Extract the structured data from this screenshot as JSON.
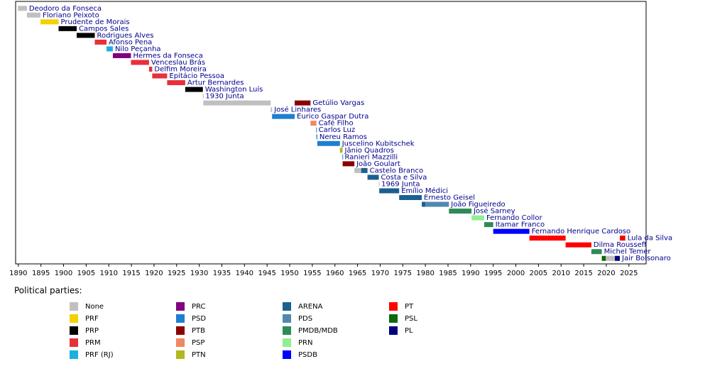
{
  "chart_data": {
    "type": "timeline",
    "legend_title": "Political parties:",
    "xlim": [
      1889.4,
      2028.8
    ],
    "xticks": [
      1890,
      1895,
      1900,
      1905,
      1910,
      1915,
      1920,
      1925,
      1930,
      1935,
      1940,
      1945,
      1950,
      1955,
      1960,
      1965,
      1970,
      1975,
      1980,
      1985,
      1990,
      1995,
      2000,
      2005,
      2010,
      2015,
      2020,
      2025
    ],
    "parties": [
      {
        "name": "None",
        "color": "#c0c0c0"
      },
      {
        "name": "PRF",
        "color": "#f2d200"
      },
      {
        "name": "PRP",
        "color": "#000000"
      },
      {
        "name": "PRM",
        "color": "#e8303a"
      },
      {
        "name": "PRF (RJ)",
        "color": "#1ab0e0"
      },
      {
        "name": "PRC",
        "color": "#800080"
      },
      {
        "name": "PSD",
        "color": "#1e7fd0"
      },
      {
        "name": "PTB",
        "color": "#8b0000"
      },
      {
        "name": "PSP",
        "color": "#f08860"
      },
      {
        "name": "PTN",
        "color": "#b0b820"
      },
      {
        "name": "ARENA",
        "color": "#1a6090"
      },
      {
        "name": "PDS",
        "color": "#5088b0"
      },
      {
        "name": "PMDB/MDB",
        "color": "#2e8b57"
      },
      {
        "name": "PRN",
        "color": "#90ee90"
      },
      {
        "name": "PSDB",
        "color": "#0000ff"
      },
      {
        "name": "PT",
        "color": "#ff0000"
      },
      {
        "name": "PSL",
        "color": "#0a6a0a"
      },
      {
        "name": "PL",
        "color": "#000080"
      }
    ],
    "rows": [
      {
        "name": "Deodoro da Fonseca",
        "segments": [
          {
            "start": 1889.9,
            "end": 1891.9,
            "party": 0
          }
        ]
      },
      {
        "name": "Floriano Peixoto",
        "segments": [
          {
            "start": 1891.9,
            "end": 1894.9,
            "party": 0
          }
        ]
      },
      {
        "name": "Prudente de Morais",
        "segments": [
          {
            "start": 1894.9,
            "end": 1898.9,
            "party": 1
          }
        ]
      },
      {
        "name": "Campos Sales",
        "segments": [
          {
            "start": 1898.9,
            "end": 1902.9,
            "party": 2
          }
        ]
      },
      {
        "name": "Rodrigues Alves",
        "segments": [
          {
            "start": 1902.9,
            "end": 1906.9,
            "party": 2
          }
        ]
      },
      {
        "name": "Afonso Pena",
        "segments": [
          {
            "start": 1906.9,
            "end": 1909.5,
            "party": 3
          }
        ]
      },
      {
        "name": "Nilo Peçanha",
        "segments": [
          {
            "start": 1909.5,
            "end": 1910.9,
            "party": 4
          }
        ]
      },
      {
        "name": "Hermes da Fonseca",
        "segments": [
          {
            "start": 1910.9,
            "end": 1914.9,
            "party": 5
          }
        ]
      },
      {
        "name": "Venceslau Brás",
        "segments": [
          {
            "start": 1914.9,
            "end": 1918.9,
            "party": 3
          }
        ]
      },
      {
        "name": "Delfim Moreira",
        "segments": [
          {
            "start": 1918.9,
            "end": 1919.6,
            "party": 3
          }
        ]
      },
      {
        "name": "Epitácio Pessoa",
        "segments": [
          {
            "start": 1919.6,
            "end": 1922.9,
            "party": 3
          }
        ]
      },
      {
        "name": "Artur Bernardes",
        "segments": [
          {
            "start": 1922.9,
            "end": 1926.9,
            "party": 3
          }
        ]
      },
      {
        "name": "Washington Luís",
        "segments": [
          {
            "start": 1926.9,
            "end": 1930.8,
            "party": 2
          }
        ]
      },
      {
        "name": "1930 Junta",
        "segments": [
          {
            "start": 1930.8,
            "end": 1930.9,
            "party": 0
          }
        ]
      },
      {
        "name": "Getúlio Vargas",
        "segments": [
          {
            "start": 1930.9,
            "end": 1945.8,
            "party": 0
          },
          {
            "start": 1951.1,
            "end": 1954.6,
            "party": 7
          }
        ]
      },
      {
        "name": "José Linhares",
        "segments": [
          {
            "start": 1945.8,
            "end": 1946.1,
            "party": 0
          }
        ]
      },
      {
        "name": "Eurico Gaspar Dutra",
        "segments": [
          {
            "start": 1946.1,
            "end": 1951.1,
            "party": 6
          }
        ]
      },
      {
        "name": "Café Filho",
        "segments": [
          {
            "start": 1954.6,
            "end": 1955.9,
            "party": 8
          }
        ]
      },
      {
        "name": "Carlos Luz",
        "segments": [
          {
            "start": 1955.85,
            "end": 1955.9,
            "party": 6
          }
        ]
      },
      {
        "name": "Nereu Ramos",
        "segments": [
          {
            "start": 1955.9,
            "end": 1956.1,
            "party": 6
          }
        ]
      },
      {
        "name": "Juscelino Kubitschek",
        "segments": [
          {
            "start": 1956.1,
            "end": 1961.1,
            "party": 6
          }
        ]
      },
      {
        "name": "Jânio Quadros",
        "segments": [
          {
            "start": 1961.1,
            "end": 1961.7,
            "party": 9
          }
        ]
      },
      {
        "name": "Ranieri Mazzilli",
        "segments": [
          {
            "start": 1961.65,
            "end": 1961.7,
            "party": 6
          }
        ]
      },
      {
        "name": "João Goulart",
        "segments": [
          {
            "start": 1961.7,
            "end": 1964.3,
            "party": 7
          }
        ]
      },
      {
        "name": "Castelo Branco",
        "segments": [
          {
            "start": 1964.3,
            "end": 1965.8,
            "party": 0
          },
          {
            "start": 1965.8,
            "end": 1967.2,
            "party": 10
          }
        ]
      },
      {
        "name": "Costa e Silva",
        "segments": [
          {
            "start": 1967.2,
            "end": 1969.7,
            "party": 10
          }
        ]
      },
      {
        "name": "1969 Junta",
        "segments": [
          {
            "start": 1969.7,
            "end": 1969.8,
            "party": 0
          }
        ]
      },
      {
        "name": "Emílio Médici",
        "segments": [
          {
            "start": 1969.8,
            "end": 1974.2,
            "party": 10
          }
        ]
      },
      {
        "name": "Ernesto Geisel",
        "segments": [
          {
            "start": 1974.2,
            "end": 1979.2,
            "party": 10
          }
        ]
      },
      {
        "name": "João Figueiredo",
        "segments": [
          {
            "start": 1979.2,
            "end": 1980,
            "party": 10
          },
          {
            "start": 1980,
            "end": 1985.2,
            "party": 11
          }
        ]
      },
      {
        "name": "José Sarney",
        "segments": [
          {
            "start": 1985.2,
            "end": 1990.2,
            "party": 12
          }
        ]
      },
      {
        "name": "Fernando Collor",
        "segments": [
          {
            "start": 1990.2,
            "end": 1993,
            "party": 13
          }
        ]
      },
      {
        "name": "Itamar Franco",
        "segments": [
          {
            "start": 1993,
            "end": 1995,
            "party": 12
          }
        ]
      },
      {
        "name": "Fernando Henrique Cardoso",
        "segments": [
          {
            "start": 1995,
            "end": 2003,
            "party": 14
          }
        ]
      },
      {
        "name": "Lula da Silva",
        "segments": [
          {
            "start": 2003,
            "end": 2011,
            "party": 15
          },
          {
            "start": 2023,
            "end": 2024.2,
            "party": 15
          }
        ]
      },
      {
        "name": "Dilma Rousseff",
        "segments": [
          {
            "start": 2011,
            "end": 2016.7,
            "party": 15
          }
        ]
      },
      {
        "name": "Michel Temer",
        "segments": [
          {
            "start": 2016.7,
            "end": 2019,
            "party": 12
          }
        ]
      },
      {
        "name": "Jair Bolsonaro",
        "segments": [
          {
            "start": 2019,
            "end": 2019.9,
            "party": 16
          },
          {
            "start": 2019.9,
            "end": 2021.9,
            "party": 0
          },
          {
            "start": 2021.9,
            "end": 2023,
            "party": 17
          }
        ]
      }
    ]
  }
}
